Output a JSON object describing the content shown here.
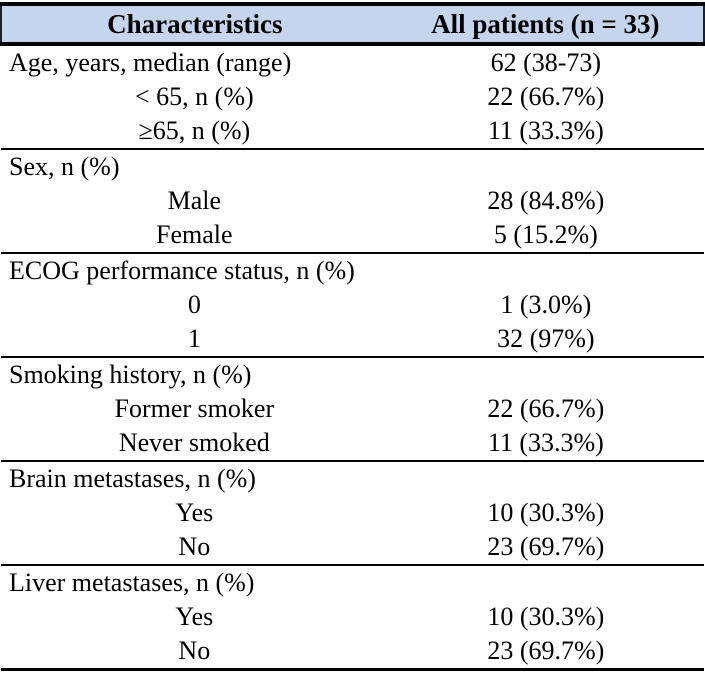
{
  "table": {
    "title_semantic": "patient-characteristics-table",
    "header": {
      "col1": "Characteristics",
      "col2": "All patients (n = 33)"
    },
    "colors": {
      "header_bg": "#c5d5ed",
      "border": "#000000"
    },
    "sections": [
      {
        "rows": [
          {
            "label": "Age, years, median (range)",
            "value": "62 (38-73)",
            "indent": false
          },
          {
            "label": "< 65, n (%)",
            "value": "22 (66.7%)",
            "indent": true
          },
          {
            "label": "≥65, n (%)",
            "value": "11 (33.3%)",
            "indent": true
          }
        ]
      },
      {
        "rows": [
          {
            "label": "Sex, n (%)",
            "value": "",
            "indent": false
          },
          {
            "label": "Male",
            "value": "28 (84.8%)",
            "indent": true
          },
          {
            "label": "Female",
            "value": "5 (15.2%)",
            "indent": true
          }
        ]
      },
      {
        "rows": [
          {
            "label": "ECOG performance status, n (%)",
            "value": "",
            "indent": false
          },
          {
            "label": "0",
            "value": "1 (3.0%)",
            "indent": true
          },
          {
            "label": "1",
            "value": "32 (97%)",
            "indent": true
          }
        ]
      },
      {
        "rows": [
          {
            "label": "Smoking history, n (%)",
            "value": "",
            "indent": false
          },
          {
            "label": "Former smoker",
            "value": "22 (66.7%)",
            "indent": true
          },
          {
            "label": "Never smoked",
            "value": "11 (33.3%)",
            "indent": true
          }
        ]
      },
      {
        "rows": [
          {
            "label": "Brain metastases, n (%)",
            "value": "",
            "indent": false
          },
          {
            "label": "Yes",
            "value": "10 (30.3%)",
            "indent": true
          },
          {
            "label": "No",
            "value": "23 (69.7%)",
            "indent": true
          }
        ]
      },
      {
        "rows": [
          {
            "label": "Liver metastases, n (%)",
            "value": "",
            "indent": false
          },
          {
            "label": "Yes",
            "value": "10 (30.3%)",
            "indent": true
          },
          {
            "label": "No",
            "value": "23 (69.7%)",
            "indent": true
          }
        ]
      }
    ]
  }
}
